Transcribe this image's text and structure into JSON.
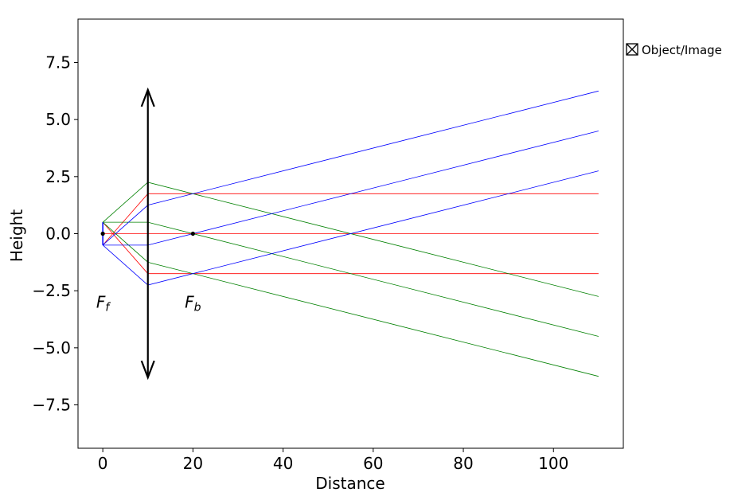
{
  "chart_data": {
    "type": "line",
    "title": "",
    "xlabel": "Distance",
    "ylabel": "Height",
    "xlim": [
      -5.5,
      115.5
    ],
    "ylim": [
      -9.4,
      9.4
    ],
    "xticks": [
      0,
      20,
      40,
      60,
      80,
      100
    ],
    "yticks": [
      -7.5,
      -5.0,
      -2.5,
      0.0,
      2.5,
      5.0,
      7.5
    ],
    "xtick_labels": [
      "0",
      "20",
      "40",
      "60",
      "80",
      "100"
    ],
    "ytick_labels": [
      "−7.5",
      "−5.0",
      "−2.5",
      "0.0",
      "2.5",
      "5.0",
      "7.5"
    ],
    "grid": false,
    "legend": {
      "position": "outside-right",
      "entries": [
        {
          "label": "Object/Image",
          "marker": "square-x",
          "color": "#000000"
        }
      ]
    },
    "lens": {
      "x": 10,
      "half_height": 6.3,
      "color": "#000000"
    },
    "focal_points": [
      {
        "x": 0,
        "y": 0,
        "label": "F",
        "subscript": "f",
        "label_x": 0,
        "label_y": -3.0
      },
      {
        "x": 20,
        "y": 0,
        "label": "F",
        "subscript": "b",
        "label_x": 20,
        "label_y": -3.0
      }
    ],
    "object": {
      "x": 0,
      "y_bottom": -0.5,
      "y_top": 0.5,
      "color": "#0000ff"
    },
    "series": [
      {
        "color": "#ff0000",
        "points": [
          [
            0,
            0.5
          ],
          [
            10,
            -1.75
          ],
          [
            110,
            -1.75
          ]
        ]
      },
      {
        "color": "#ff0000",
        "points": [
          [
            0,
            0.0
          ],
          [
            10,
            0.0
          ],
          [
            110,
            0.0
          ]
        ]
      },
      {
        "color": "#ff0000",
        "points": [
          [
            0,
            -0.5
          ],
          [
            10,
            1.75
          ],
          [
            110,
            1.75
          ]
        ]
      },
      {
        "color": "#008000",
        "points": [
          [
            0,
            0.5
          ],
          [
            10,
            2.25
          ],
          [
            110,
            -2.75
          ]
        ]
      },
      {
        "color": "#008000",
        "points": [
          [
            0,
            0.5
          ],
          [
            10,
            0.5
          ],
          [
            110,
            -4.5
          ]
        ]
      },
      {
        "color": "#008000",
        "points": [
          [
            0,
            0.5
          ],
          [
            10,
            -1.25
          ],
          [
            110,
            -6.25
          ]
        ]
      },
      {
        "color": "#0000ff",
        "points": [
          [
            0,
            -0.5
          ],
          [
            10,
            1.25
          ],
          [
            110,
            6.25
          ]
        ]
      },
      {
        "color": "#0000ff",
        "points": [
          [
            0,
            -0.5
          ],
          [
            10,
            -0.5
          ],
          [
            110,
            4.5
          ]
        ]
      },
      {
        "color": "#0000ff",
        "points": [
          [
            0,
            -0.5
          ],
          [
            10,
            -2.25
          ],
          [
            110,
            2.75
          ]
        ]
      }
    ]
  }
}
